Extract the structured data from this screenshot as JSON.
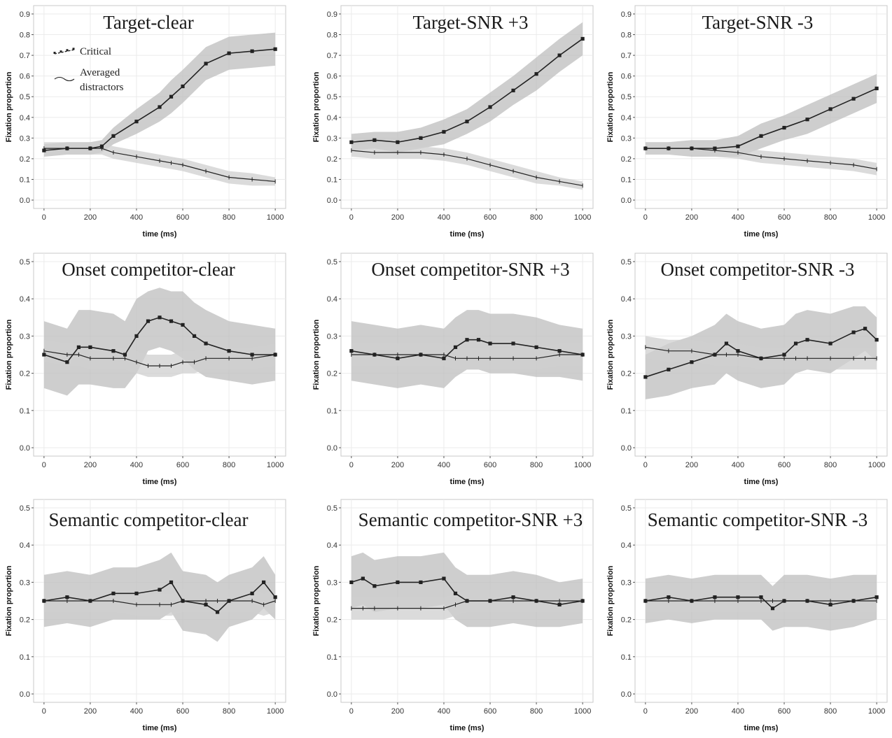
{
  "figure": {
    "colors": {
      "critical_band": "#bdbdbd",
      "distractor_band": "#cfcfcf",
      "overlap_band": "#a3a3a3",
      "line": "#222222",
      "grid": "#ebebeb",
      "panel_border": "#c8c8c8"
    },
    "legend": {
      "critical": "Critical",
      "distractors_line1": "Averaged",
      "distractors_line2": "distractors"
    }
  },
  "chart_data": [
    {
      "type": "line",
      "title": "Target-clear",
      "xlabel": "time (ms)",
      "ylabel": "Fixation proportion",
      "xlim": [
        0,
        1000
      ],
      "ylim": [
        0,
        0.9
      ],
      "yticks": [
        0,
        0.1,
        0.2,
        0.3,
        0.4,
        0.5,
        0.6,
        0.7,
        0.8,
        0.9
      ],
      "xticks": [
        0,
        200,
        400,
        600,
        800,
        1000
      ],
      "grid": true,
      "x": [
        0,
        100,
        200,
        250,
        300,
        400,
        500,
        550,
        600,
        700,
        800,
        900,
        1000
      ],
      "series": [
        {
          "name": "Critical",
          "values": [
            0.24,
            0.25,
            0.25,
            0.26,
            0.31,
            0.38,
            0.45,
            0.5,
            0.55,
            0.66,
            0.71,
            0.72,
            0.73
          ],
          "band_halfwidth": [
            0.03,
            0.03,
            0.03,
            0.03,
            0.04,
            0.06,
            0.07,
            0.08,
            0.08,
            0.08,
            0.08,
            0.08,
            0.08
          ]
        },
        {
          "name": "Averaged distractors",
          "values": [
            0.25,
            0.25,
            0.25,
            0.25,
            0.23,
            0.21,
            0.19,
            0.18,
            0.17,
            0.14,
            0.11,
            0.1,
            0.09
          ],
          "band_halfwidth": [
            0.03,
            0.03,
            0.03,
            0.03,
            0.03,
            0.03,
            0.03,
            0.03,
            0.03,
            0.03,
            0.03,
            0.03,
            0.02
          ]
        }
      ]
    },
    {
      "type": "line",
      "title": "Target-SNR +3",
      "xlabel": "time (ms)",
      "ylabel": "Fixation proportion",
      "xlim": [
        0,
        1000
      ],
      "ylim": [
        0,
        0.9
      ],
      "yticks": [
        0,
        0.1,
        0.2,
        0.3,
        0.4,
        0.5,
        0.6,
        0.7,
        0.8,
        0.9
      ],
      "xticks": [
        0,
        200,
        400,
        600,
        800,
        1000
      ],
      "grid": true,
      "x": [
        0,
        100,
        200,
        300,
        400,
        500,
        600,
        700,
        800,
        900,
        1000
      ],
      "series": [
        {
          "name": "Critical",
          "values": [
            0.28,
            0.29,
            0.28,
            0.3,
            0.33,
            0.38,
            0.45,
            0.53,
            0.61,
            0.7,
            0.78
          ],
          "band_halfwidth": [
            0.04,
            0.04,
            0.05,
            0.05,
            0.06,
            0.06,
            0.07,
            0.07,
            0.08,
            0.08,
            0.08
          ]
        },
        {
          "name": "Averaged distractors",
          "values": [
            0.24,
            0.23,
            0.23,
            0.23,
            0.22,
            0.2,
            0.17,
            0.14,
            0.11,
            0.09,
            0.07
          ],
          "band_halfwidth": [
            0.03,
            0.03,
            0.03,
            0.03,
            0.03,
            0.03,
            0.03,
            0.03,
            0.03,
            0.02,
            0.02
          ]
        }
      ]
    },
    {
      "type": "line",
      "title": "Target-SNR -3",
      "xlabel": "time (ms)",
      "ylabel": "Fixation proportion",
      "xlim": [
        0,
        1000
      ],
      "ylim": [
        0,
        0.9
      ],
      "yticks": [
        0,
        0.1,
        0.2,
        0.3,
        0.4,
        0.5,
        0.6,
        0.7,
        0.8,
        0.9
      ],
      "xticks": [
        0,
        200,
        400,
        600,
        800,
        1000
      ],
      "grid": true,
      "x": [
        0,
        100,
        200,
        300,
        400,
        500,
        600,
        700,
        800,
        900,
        1000
      ],
      "series": [
        {
          "name": "Critical",
          "values": [
            0.25,
            0.25,
            0.25,
            0.25,
            0.26,
            0.31,
            0.35,
            0.39,
            0.44,
            0.49,
            0.54
          ],
          "band_halfwidth": [
            0.03,
            0.03,
            0.04,
            0.04,
            0.05,
            0.06,
            0.06,
            0.07,
            0.07,
            0.07,
            0.07
          ]
        },
        {
          "name": "Averaged distractors",
          "values": [
            0.25,
            0.25,
            0.25,
            0.24,
            0.23,
            0.21,
            0.2,
            0.19,
            0.18,
            0.17,
            0.15
          ],
          "band_halfwidth": [
            0.03,
            0.03,
            0.03,
            0.03,
            0.03,
            0.03,
            0.03,
            0.03,
            0.03,
            0.03,
            0.03
          ]
        }
      ]
    },
    {
      "type": "line",
      "title": "Onset competitor-clear",
      "xlabel": "time (ms)",
      "ylabel": "Fixation proportion",
      "xlim": [
        0,
        1000
      ],
      "ylim": [
        0,
        0.5
      ],
      "yticks": [
        0,
        0.1,
        0.2,
        0.3,
        0.4,
        0.5
      ],
      "xticks": [
        0,
        200,
        400,
        600,
        800,
        1000
      ],
      "grid": true,
      "x": [
        0,
        100,
        150,
        200,
        300,
        350,
        400,
        450,
        500,
        550,
        600,
        650,
        700,
        800,
        900,
        1000
      ],
      "series": [
        {
          "name": "Critical",
          "values": [
            0.25,
            0.23,
            0.27,
            0.27,
            0.26,
            0.25,
            0.3,
            0.34,
            0.35,
            0.34,
            0.33,
            0.3,
            0.28,
            0.26,
            0.25,
            0.25
          ],
          "band_halfwidth": [
            0.09,
            0.09,
            0.1,
            0.1,
            0.1,
            0.09,
            0.1,
            0.08,
            0.08,
            0.08,
            0.09,
            0.09,
            0.09,
            0.08,
            0.08,
            0.07
          ]
        },
        {
          "name": "Averaged distractors",
          "values": [
            0.26,
            0.25,
            0.25,
            0.24,
            0.24,
            0.24,
            0.23,
            0.22,
            0.22,
            0.22,
            0.23,
            0.23,
            0.24,
            0.24,
            0.24,
            0.25
          ],
          "band_halfwidth": [
            0.03,
            0.03,
            0.03,
            0.03,
            0.03,
            0.03,
            0.03,
            0.03,
            0.03,
            0.03,
            0.03,
            0.03,
            0.03,
            0.03,
            0.03,
            0.03
          ]
        }
      ]
    },
    {
      "type": "line",
      "title": "Onset competitor-SNR +3",
      "xlabel": "time (ms)",
      "ylabel": "Fixation proportion",
      "xlim": [
        0,
        1000
      ],
      "ylim": [
        0,
        0.5
      ],
      "yticks": [
        0,
        0.1,
        0.2,
        0.3,
        0.4,
        0.5
      ],
      "xticks": [
        0,
        200,
        400,
        600,
        800,
        1000
      ],
      "grid": true,
      "x": [
        0,
        100,
        200,
        300,
        400,
        450,
        500,
        550,
        600,
        700,
        800,
        900,
        1000
      ],
      "series": [
        {
          "name": "Critical",
          "values": [
            0.26,
            0.25,
            0.24,
            0.25,
            0.24,
            0.27,
            0.29,
            0.29,
            0.28,
            0.28,
            0.27,
            0.26,
            0.25
          ],
          "band_halfwidth": [
            0.08,
            0.08,
            0.08,
            0.08,
            0.08,
            0.08,
            0.08,
            0.08,
            0.08,
            0.08,
            0.08,
            0.07,
            0.07
          ]
        },
        {
          "name": "Averaged distractors",
          "values": [
            0.25,
            0.25,
            0.25,
            0.25,
            0.25,
            0.24,
            0.24,
            0.24,
            0.24,
            0.24,
            0.24,
            0.25,
            0.25
          ],
          "band_halfwidth": [
            0.03,
            0.03,
            0.03,
            0.03,
            0.03,
            0.03,
            0.03,
            0.03,
            0.03,
            0.03,
            0.03,
            0.03,
            0.03
          ]
        }
      ]
    },
    {
      "type": "line",
      "title": "Onset competitor-SNR -3",
      "xlabel": "time (ms)",
      "ylabel": "Fixation proportion",
      "xlim": [
        0,
        1000
      ],
      "ylim": [
        0,
        0.5
      ],
      "yticks": [
        0,
        0.1,
        0.2,
        0.3,
        0.4,
        0.5
      ],
      "xticks": [
        0,
        200,
        400,
        600,
        800,
        1000
      ],
      "grid": true,
      "x": [
        0,
        100,
        200,
        300,
        350,
        400,
        500,
        600,
        650,
        700,
        800,
        900,
        950,
        1000
      ],
      "series": [
        {
          "name": "Critical",
          "values": [
            0.19,
            0.21,
            0.23,
            0.25,
            0.28,
            0.26,
            0.24,
            0.25,
            0.28,
            0.29,
            0.28,
            0.31,
            0.32,
            0.29
          ],
          "band_halfwidth": [
            0.06,
            0.07,
            0.07,
            0.08,
            0.08,
            0.08,
            0.08,
            0.08,
            0.08,
            0.08,
            0.08,
            0.07,
            0.06,
            0.06
          ]
        },
        {
          "name": "Averaged distractors",
          "values": [
            0.27,
            0.26,
            0.26,
            0.25,
            0.25,
            0.25,
            0.24,
            0.24,
            0.24,
            0.24,
            0.24,
            0.24,
            0.24,
            0.24
          ],
          "band_halfwidth": [
            0.03,
            0.03,
            0.03,
            0.03,
            0.03,
            0.03,
            0.03,
            0.03,
            0.03,
            0.03,
            0.03,
            0.03,
            0.03,
            0.03
          ]
        }
      ]
    },
    {
      "type": "line",
      "title": "Semantic competitor-clear",
      "xlabel": "time (ms)",
      "ylabel": "Fixation proportion",
      "xlim": [
        0,
        1000
      ],
      "ylim": [
        0,
        0.5
      ],
      "yticks": [
        0,
        0.1,
        0.2,
        0.3,
        0.4,
        0.5
      ],
      "xticks": [
        0,
        200,
        400,
        600,
        800,
        1000
      ],
      "grid": true,
      "x": [
        0,
        100,
        200,
        300,
        400,
        500,
        550,
        600,
        700,
        750,
        800,
        900,
        950,
        1000
      ],
      "series": [
        {
          "name": "Critical",
          "values": [
            0.25,
            0.26,
            0.25,
            0.27,
            0.27,
            0.28,
            0.3,
            0.25,
            0.24,
            0.22,
            0.25,
            0.27,
            0.3,
            0.26
          ],
          "band_halfwidth": [
            0.07,
            0.07,
            0.07,
            0.07,
            0.07,
            0.08,
            0.08,
            0.08,
            0.08,
            0.08,
            0.07,
            0.07,
            0.07,
            0.06
          ]
        },
        {
          "name": "Averaged distractors",
          "values": [
            0.25,
            0.25,
            0.25,
            0.25,
            0.24,
            0.24,
            0.24,
            0.25,
            0.25,
            0.25,
            0.25,
            0.25,
            0.24,
            0.25
          ],
          "band_halfwidth": [
            0.03,
            0.03,
            0.03,
            0.03,
            0.03,
            0.03,
            0.03,
            0.03,
            0.03,
            0.03,
            0.03,
            0.03,
            0.03,
            0.03
          ]
        }
      ]
    },
    {
      "type": "line",
      "title": "Semantic competitor-SNR +3",
      "xlabel": "time (ms)",
      "ylabel": "Fixation proportion",
      "xlim": [
        0,
        1000
      ],
      "ylim": [
        0,
        0.5
      ],
      "yticks": [
        0,
        0.1,
        0.2,
        0.3,
        0.4,
        0.5
      ],
      "xticks": [
        0,
        200,
        400,
        600,
        800,
        1000
      ],
      "grid": true,
      "x": [
        0,
        50,
        100,
        200,
        300,
        400,
        450,
        500,
        600,
        700,
        800,
        900,
        1000
      ],
      "series": [
        {
          "name": "Critical",
          "values": [
            0.3,
            0.31,
            0.29,
            0.3,
            0.3,
            0.31,
            0.27,
            0.25,
            0.25,
            0.26,
            0.25,
            0.24,
            0.25
          ],
          "band_halfwidth": [
            0.07,
            0.07,
            0.07,
            0.07,
            0.07,
            0.07,
            0.07,
            0.07,
            0.07,
            0.07,
            0.07,
            0.06,
            0.06
          ]
        },
        {
          "name": "Averaged distractors",
          "values": [
            0.23,
            0.23,
            0.23,
            0.23,
            0.23,
            0.23,
            0.24,
            0.25,
            0.25,
            0.25,
            0.25,
            0.25,
            0.25
          ],
          "band_halfwidth": [
            0.03,
            0.03,
            0.03,
            0.03,
            0.03,
            0.03,
            0.03,
            0.03,
            0.03,
            0.03,
            0.03,
            0.03,
            0.03
          ]
        }
      ]
    },
    {
      "type": "line",
      "title": "Semantic competitor-SNR -3",
      "xlabel": "time (ms)",
      "ylabel": "Fixation proportion",
      "xlim": [
        0,
        1000
      ],
      "ylim": [
        0,
        0.5
      ],
      "yticks": [
        0,
        0.1,
        0.2,
        0.3,
        0.4,
        0.5
      ],
      "xticks": [
        0,
        200,
        400,
        600,
        800,
        1000
      ],
      "grid": true,
      "x": [
        0,
        100,
        200,
        300,
        400,
        500,
        550,
        600,
        700,
        800,
        900,
        1000
      ],
      "series": [
        {
          "name": "Critical",
          "values": [
            0.25,
            0.26,
            0.25,
            0.26,
            0.26,
            0.26,
            0.23,
            0.25,
            0.25,
            0.24,
            0.25,
            0.26
          ],
          "band_halfwidth": [
            0.06,
            0.06,
            0.06,
            0.06,
            0.06,
            0.06,
            0.06,
            0.07,
            0.07,
            0.07,
            0.07,
            0.06
          ]
        },
        {
          "name": "Averaged distractors",
          "values": [
            0.25,
            0.25,
            0.25,
            0.25,
            0.25,
            0.25,
            0.25,
            0.25,
            0.25,
            0.25,
            0.25,
            0.25
          ],
          "band_halfwidth": [
            0.03,
            0.03,
            0.03,
            0.03,
            0.03,
            0.03,
            0.03,
            0.03,
            0.03,
            0.03,
            0.03,
            0.03
          ]
        }
      ]
    }
  ]
}
